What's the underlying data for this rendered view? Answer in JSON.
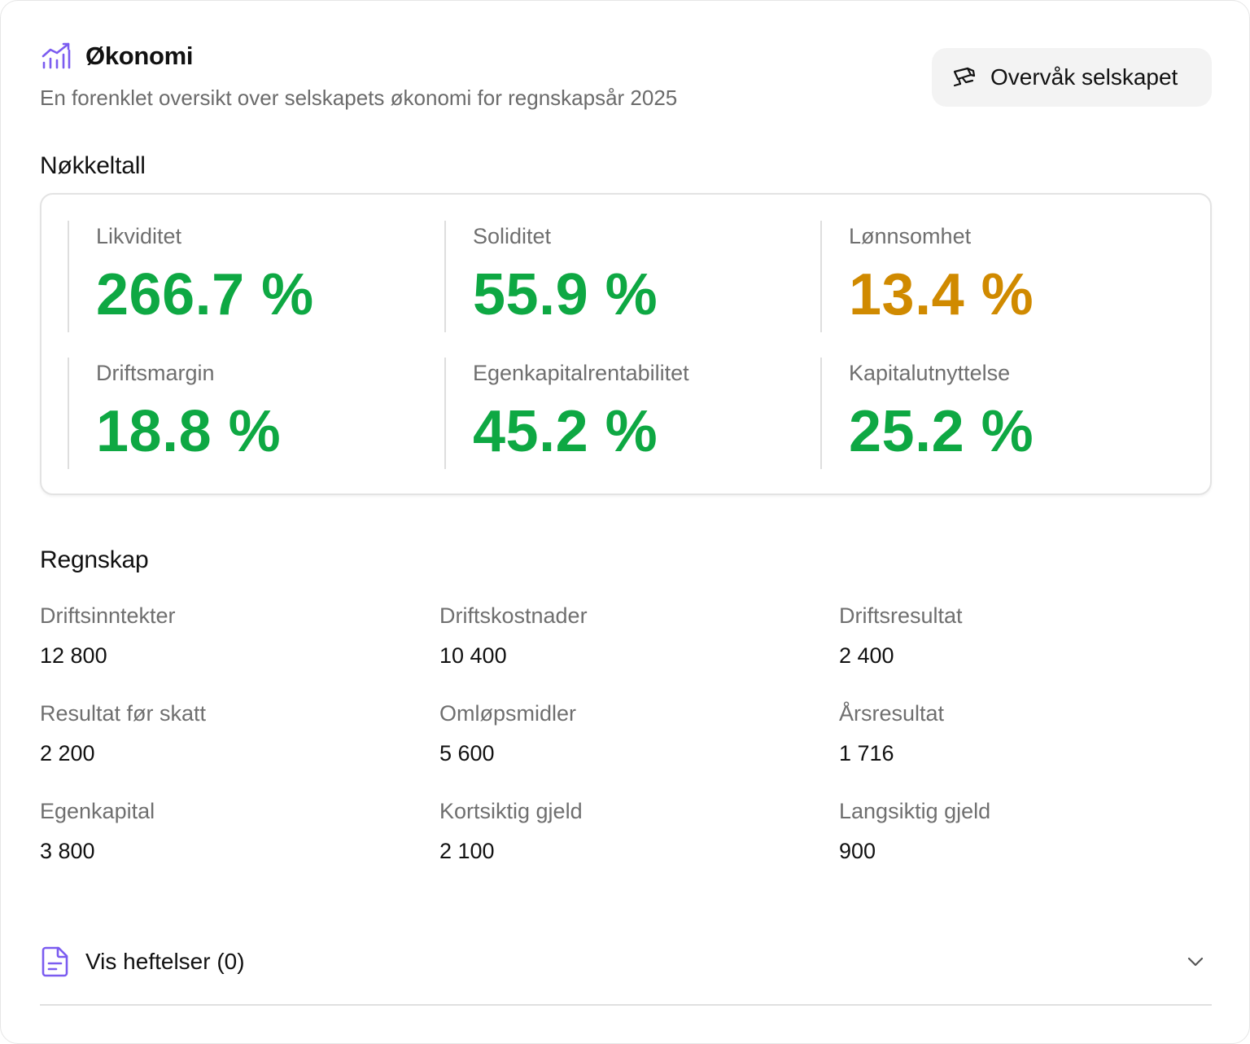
{
  "header": {
    "title": "Økonomi",
    "title_icon": "chart-trend-icon",
    "subtitle": "En forenklet oversikt over selskapets økonomi for regnskapsår 2025"
  },
  "watch_button": {
    "label": "Overvåk selskapet",
    "icon": "binoculars-icon"
  },
  "key_figures": {
    "title": "Nøkkeltall",
    "items": [
      {
        "label": "Likviditet",
        "value": "266.7 %",
        "color": "#0ea843"
      },
      {
        "label": "Soliditet",
        "value": "55.9 %",
        "color": "#0ea843"
      },
      {
        "label": "Lønnsomhet",
        "value": "13.4 %",
        "color": "#d08a00"
      },
      {
        "label": "Driftsmargin",
        "value": "18.8 %",
        "color": "#0ea843"
      },
      {
        "label": "Egenkapitalrentabilitet",
        "value": "45.2 %",
        "color": "#0ea843"
      },
      {
        "label": "Kapitalutnyttelse",
        "value": "25.2 %",
        "color": "#0ea843"
      }
    ]
  },
  "accounts": {
    "title": "Regnskap",
    "items": [
      {
        "label": "Driftsinntekter",
        "value": "12 800"
      },
      {
        "label": "Driftskostnader",
        "value": "10 400"
      },
      {
        "label": "Driftsresultat",
        "value": "2 400"
      },
      {
        "label": "Resultat før skatt",
        "value": "2 200"
      },
      {
        "label": "Omløpsmidler",
        "value": "5 600"
      },
      {
        "label": "Årsresultat",
        "value": "1 716"
      },
      {
        "label": "Egenkapital",
        "value": "3 800"
      },
      {
        "label": "Kortsiktig gjeld",
        "value": "2 100"
      },
      {
        "label": "Langsiktig gjeld",
        "value": "900"
      }
    ]
  },
  "encumbrances": {
    "label": "Vis heftelser (0)",
    "icon": "document-icon",
    "toggle_icon": "chevron-down-icon"
  },
  "colors": {
    "accent": "#7b5cf0",
    "positive": "#0ea843",
    "warning": "#d08a00"
  }
}
